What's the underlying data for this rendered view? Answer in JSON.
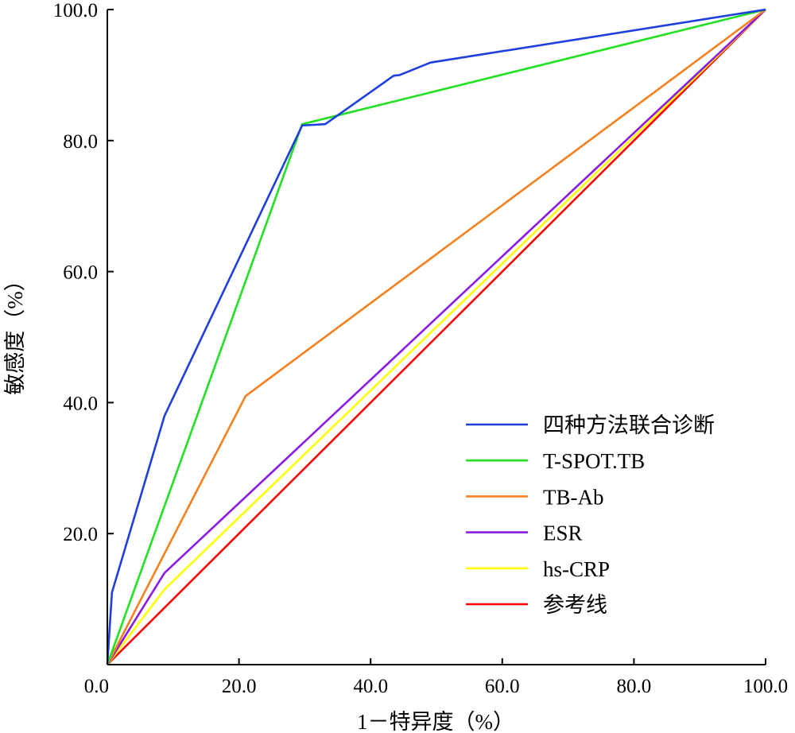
{
  "chart_data": {
    "type": "line",
    "title": "",
    "xlabel": "1－特异度（%）",
    "ylabel": "敏感度（%）",
    "xlim": [
      0,
      100
    ],
    "ylim": [
      0,
      100
    ],
    "x_ticks": [
      "0.0",
      "20.0",
      "40.0",
      "60.0",
      "80.0",
      "100.0"
    ],
    "y_ticks": [
      "20.0",
      "40.0",
      "60.0",
      "80.0",
      "100.0"
    ],
    "grid": false,
    "legend_position": "bottom-right",
    "series": [
      {
        "name": "四种方法联合诊断",
        "color": "#1f3fdc",
        "points": [
          [
            0,
            0
          ],
          [
            0.7,
            11
          ],
          [
            8.7,
            38
          ],
          [
            29.6,
            82.3
          ],
          [
            33.1,
            82.5
          ],
          [
            43.5,
            89.9
          ],
          [
            44.4,
            90
          ],
          [
            49.1,
            91.9
          ],
          [
            100,
            100
          ]
        ]
      },
      {
        "name": "T-SPOT.TB",
        "color": "#22e022",
        "points": [
          [
            0,
            0
          ],
          [
            29.6,
            82.5
          ],
          [
            100,
            100
          ]
        ]
      },
      {
        "name": "TB-Ab",
        "color": "#f5801e",
        "points": [
          [
            0,
            0
          ],
          [
            21,
            41
          ],
          [
            100,
            100
          ]
        ]
      },
      {
        "name": "ESR",
        "color": "#8a1be2",
        "points": [
          [
            0,
            0
          ],
          [
            8.7,
            14
          ],
          [
            100,
            100
          ]
        ]
      },
      {
        "name": "hs-CRP",
        "color": "#ffff00",
        "points": [
          [
            0,
            0
          ],
          [
            8.7,
            11.5
          ],
          [
            100,
            100
          ]
        ]
      },
      {
        "name": "参考线",
        "color": "#ff0000",
        "points": [
          [
            0,
            0
          ],
          [
            100,
            100
          ]
        ]
      }
    ]
  }
}
